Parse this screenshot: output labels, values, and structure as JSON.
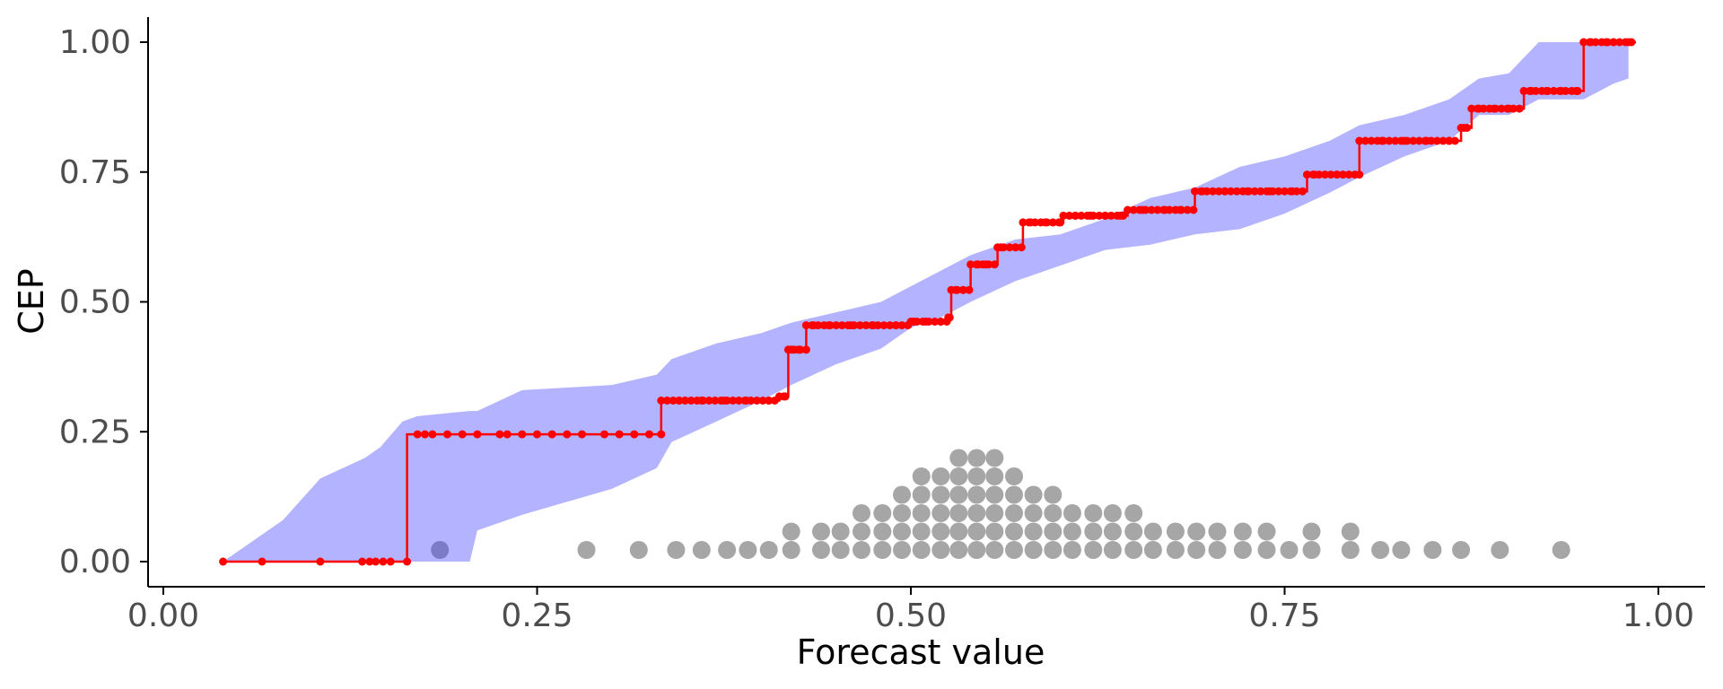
{
  "chart_data": {
    "type": "line",
    "title": "",
    "xlabel": "Forecast value",
    "ylabel": "CEP",
    "xlim": [
      0,
      1
    ],
    "ylim": [
      0,
      1
    ],
    "x_ticks": [
      0,
      0.25,
      0.5,
      0.75,
      1
    ],
    "x_tick_labels": [
      "0.00",
      "0.25",
      "0.50",
      "0.75",
      "1.00"
    ],
    "y_ticks": [
      0,
      0.25,
      0.5,
      0.75,
      1
    ],
    "y_tick_labels": [
      "0.00",
      "0.25",
      "0.50",
      "0.75",
      "1.00"
    ],
    "grid": false,
    "legend": "none",
    "colors": {
      "cep_line": "#ff0000",
      "band": "#b3b3ff",
      "dots": "#a6a6a6",
      "highlight_dot": "#7b7bc8",
      "axis": "#000000",
      "tick_text": "#4d4d4d"
    },
    "band": {
      "x": [
        0.04,
        0.08,
        0.105,
        0.135,
        0.145,
        0.16,
        0.17,
        0.205,
        0.21,
        0.24,
        0.3,
        0.33,
        0.34,
        0.37,
        0.4,
        0.42,
        0.45,
        0.48,
        0.5,
        0.52,
        0.54,
        0.57,
        0.6,
        0.63,
        0.66,
        0.69,
        0.72,
        0.75,
        0.78,
        0.8,
        0.83,
        0.86,
        0.88,
        0.9,
        0.92,
        0.95,
        0.97,
        0.98
      ],
      "lower": [
        0.0,
        0.0,
        0.0,
        0.0,
        0.0,
        0.0,
        0.0,
        0.0,
        0.06,
        0.09,
        0.14,
        0.18,
        0.23,
        0.27,
        0.31,
        0.34,
        0.38,
        0.41,
        0.45,
        0.47,
        0.5,
        0.54,
        0.57,
        0.6,
        0.61,
        0.63,
        0.64,
        0.67,
        0.71,
        0.74,
        0.78,
        0.81,
        0.86,
        0.86,
        0.89,
        0.89,
        0.92,
        0.93
      ],
      "upper": [
        0.0,
        0.08,
        0.16,
        0.2,
        0.22,
        0.27,
        0.28,
        0.29,
        0.29,
        0.33,
        0.34,
        0.36,
        0.39,
        0.42,
        0.44,
        0.46,
        0.48,
        0.5,
        0.53,
        0.56,
        0.59,
        0.62,
        0.63,
        0.66,
        0.7,
        0.72,
        0.76,
        0.78,
        0.81,
        0.84,
        0.86,
        0.89,
        0.93,
        0.94,
        1.0,
        1.0,
        1.0,
        1.0
      ]
    },
    "cep_steps": [
      {
        "x0": 0.04,
        "x1": 0.163,
        "y": 0.0
      },
      {
        "x0": 0.163,
        "x1": 0.333,
        "y": 0.245
      },
      {
        "x0": 0.333,
        "x1": 0.412,
        "y": 0.31
      },
      {
        "x0": 0.412,
        "x1": 0.418,
        "y": 0.318
      },
      {
        "x0": 0.418,
        "x1": 0.43,
        "y": 0.408
      },
      {
        "x0": 0.43,
        "x1": 0.5,
        "y": 0.455
      },
      {
        "x0": 0.5,
        "x1": 0.525,
        "y": 0.462
      },
      {
        "x0": 0.525,
        "x1": 0.527,
        "y": 0.47
      },
      {
        "x0": 0.527,
        "x1": 0.54,
        "y": 0.523
      },
      {
        "x0": 0.54,
        "x1": 0.558,
        "y": 0.572
      },
      {
        "x0": 0.558,
        "x1": 0.575,
        "y": 0.605
      },
      {
        "x0": 0.575,
        "x1": 0.602,
        "y": 0.653
      },
      {
        "x0": 0.602,
        "x1": 0.645,
        "y": 0.666
      },
      {
        "x0": 0.645,
        "x1": 0.69,
        "y": 0.677
      },
      {
        "x0": 0.69,
        "x1": 0.765,
        "y": 0.713
      },
      {
        "x0": 0.765,
        "x1": 0.8,
        "y": 0.745
      },
      {
        "x0": 0.8,
        "x1": 0.868,
        "y": 0.81
      },
      {
        "x0": 0.868,
        "x1": 0.875,
        "y": 0.835
      },
      {
        "x0": 0.875,
        "x1": 0.91,
        "y": 0.872
      },
      {
        "x0": 0.91,
        "x1": 0.95,
        "y": 0.906
      },
      {
        "x0": 0.95,
        "x1": 0.985,
        "y": 1.0
      }
    ],
    "cep_point_x": [
      0.04,
      0.066,
      0.105,
      0.133,
      0.138,
      0.142,
      0.147,
      0.152,
      0.163,
      0.17,
      0.175,
      0.18,
      0.19,
      0.2,
      0.21,
      0.225,
      0.23,
      0.24,
      0.25,
      0.26,
      0.27,
      0.28,
      0.295,
      0.305,
      0.315,
      0.325,
      0.333,
      0.345,
      0.36,
      0.375,
      0.39,
      0.405,
      0.415,
      0.42,
      0.425,
      0.435,
      0.445,
      0.46,
      0.475,
      0.49,
      0.502,
      0.51,
      0.52,
      0.526,
      0.53,
      0.535,
      0.545,
      0.55,
      0.56,
      0.57,
      0.58,
      0.59,
      0.6,
      0.61,
      0.62,
      0.63,
      0.64,
      0.655,
      0.67,
      0.68,
      0.695,
      0.71,
      0.725,
      0.74,
      0.755,
      0.77,
      0.785,
      0.8,
      0.815,
      0.83,
      0.845,
      0.86,
      0.87,
      0.88,
      0.89,
      0.9,
      0.915,
      0.925,
      0.935,
      0.945,
      0.955,
      0.965,
      0.97,
      0.98
    ],
    "dots": [
      {
        "x": 0.185,
        "row": 1
      },
      {
        "x": 0.283,
        "row": 1
      },
      {
        "x": 0.318,
        "row": 1
      },
      {
        "x": 0.343,
        "row": 1
      },
      {
        "x": 0.36,
        "row": 1
      },
      {
        "x": 0.377,
        "row": 1
      },
      {
        "x": 0.391,
        "row": 1
      },
      {
        "x": 0.405,
        "row": 1
      },
      {
        "x": 0.42,
        "row": 1
      },
      {
        "x": 0.42,
        "row": 2
      },
      {
        "x": 0.44,
        "row": 1
      },
      {
        "x": 0.44,
        "row": 2
      },
      {
        "x": 0.453,
        "row": 1
      },
      {
        "x": 0.453,
        "row": 2
      },
      {
        "x": 0.467,
        "row": 1
      },
      {
        "x": 0.467,
        "row": 2
      },
      {
        "x": 0.467,
        "row": 3
      },
      {
        "x": 0.481,
        "row": 1
      },
      {
        "x": 0.481,
        "row": 2
      },
      {
        "x": 0.481,
        "row": 3
      },
      {
        "x": 0.494,
        "row": 1
      },
      {
        "x": 0.494,
        "row": 2
      },
      {
        "x": 0.494,
        "row": 3
      },
      {
        "x": 0.494,
        "row": 4
      },
      {
        "x": 0.507,
        "row": 1
      },
      {
        "x": 0.507,
        "row": 2
      },
      {
        "x": 0.507,
        "row": 3
      },
      {
        "x": 0.507,
        "row": 4
      },
      {
        "x": 0.507,
        "row": 5
      },
      {
        "x": 0.52,
        "row": 1
      },
      {
        "x": 0.52,
        "row": 2
      },
      {
        "x": 0.52,
        "row": 3
      },
      {
        "x": 0.52,
        "row": 4
      },
      {
        "x": 0.52,
        "row": 5
      },
      {
        "x": 0.532,
        "row": 1
      },
      {
        "x": 0.532,
        "row": 2
      },
      {
        "x": 0.532,
        "row": 3
      },
      {
        "x": 0.532,
        "row": 4
      },
      {
        "x": 0.532,
        "row": 5
      },
      {
        "x": 0.532,
        "row": 6
      },
      {
        "x": 0.544,
        "row": 1
      },
      {
        "x": 0.544,
        "row": 2
      },
      {
        "x": 0.544,
        "row": 3
      },
      {
        "x": 0.544,
        "row": 4
      },
      {
        "x": 0.544,
        "row": 5
      },
      {
        "x": 0.544,
        "row": 6
      },
      {
        "x": 0.556,
        "row": 1
      },
      {
        "x": 0.556,
        "row": 2
      },
      {
        "x": 0.556,
        "row": 3
      },
      {
        "x": 0.556,
        "row": 4
      },
      {
        "x": 0.556,
        "row": 5
      },
      {
        "x": 0.556,
        "row": 6
      },
      {
        "x": 0.569,
        "row": 1
      },
      {
        "x": 0.569,
        "row": 2
      },
      {
        "x": 0.569,
        "row": 3
      },
      {
        "x": 0.569,
        "row": 4
      },
      {
        "x": 0.569,
        "row": 5
      },
      {
        "x": 0.582,
        "row": 1
      },
      {
        "x": 0.582,
        "row": 2
      },
      {
        "x": 0.582,
        "row": 3
      },
      {
        "x": 0.582,
        "row": 4
      },
      {
        "x": 0.595,
        "row": 1
      },
      {
        "x": 0.595,
        "row": 2
      },
      {
        "x": 0.595,
        "row": 3
      },
      {
        "x": 0.595,
        "row": 4
      },
      {
        "x": 0.608,
        "row": 1
      },
      {
        "x": 0.608,
        "row": 2
      },
      {
        "x": 0.608,
        "row": 3
      },
      {
        "x": 0.622,
        "row": 1
      },
      {
        "x": 0.622,
        "row": 2
      },
      {
        "x": 0.622,
        "row": 3
      },
      {
        "x": 0.635,
        "row": 1
      },
      {
        "x": 0.635,
        "row": 2
      },
      {
        "x": 0.635,
        "row": 3
      },
      {
        "x": 0.649,
        "row": 1
      },
      {
        "x": 0.649,
        "row": 2
      },
      {
        "x": 0.649,
        "row": 3
      },
      {
        "x": 0.662,
        "row": 1
      },
      {
        "x": 0.662,
        "row": 2
      },
      {
        "x": 0.677,
        "row": 1
      },
      {
        "x": 0.677,
        "row": 2
      },
      {
        "x": 0.691,
        "row": 1
      },
      {
        "x": 0.691,
        "row": 2
      },
      {
        "x": 0.705,
        "row": 1
      },
      {
        "x": 0.705,
        "row": 2
      },
      {
        "x": 0.722,
        "row": 1
      },
      {
        "x": 0.722,
        "row": 2
      },
      {
        "x": 0.738,
        "row": 1
      },
      {
        "x": 0.738,
        "row": 2
      },
      {
        "x": 0.753,
        "row": 1
      },
      {
        "x": 0.768,
        "row": 1
      },
      {
        "x": 0.768,
        "row": 2
      },
      {
        "x": 0.794,
        "row": 1
      },
      {
        "x": 0.794,
        "row": 2
      },
      {
        "x": 0.814,
        "row": 1
      },
      {
        "x": 0.828,
        "row": 1
      },
      {
        "x": 0.849,
        "row": 1
      },
      {
        "x": 0.868,
        "row": 1
      },
      {
        "x": 0.894,
        "row": 1
      },
      {
        "x": 0.935,
        "row": 1
      }
    ],
    "highlight_dot_x": 0.185
  }
}
